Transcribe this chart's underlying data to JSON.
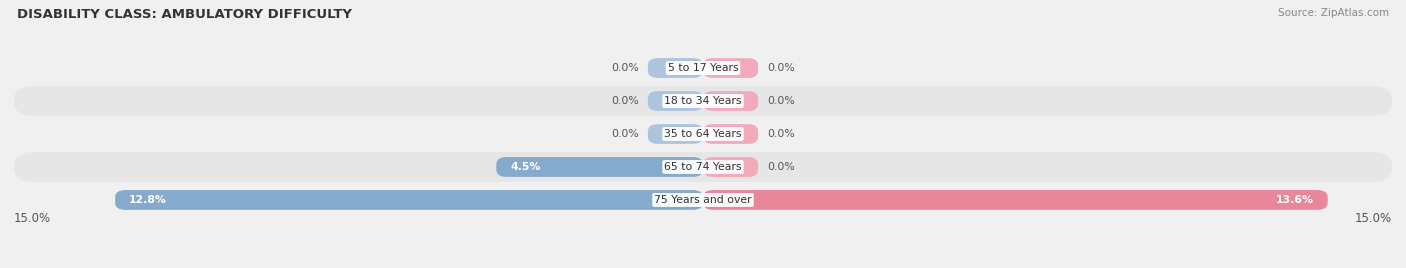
{
  "title": "DISABILITY CLASS: AMBULATORY DIFFICULTY",
  "source": "Source: ZipAtlas.com",
  "categories": [
    "5 to 17 Years",
    "18 to 34 Years",
    "35 to 64 Years",
    "65 to 74 Years",
    "75 Years and over"
  ],
  "male_values": [
    0.0,
    0.0,
    0.0,
    4.5,
    12.8
  ],
  "female_values": [
    0.0,
    0.0,
    0.0,
    0.0,
    13.6
  ],
  "max_val": 15.0,
  "male_color": "#85aacc",
  "female_color": "#e8879a",
  "male_stub_color": "#adc4de",
  "female_stub_color": "#f0aabb",
  "row_bg_light": "#f0f0f0",
  "row_bg_dark": "#e6e6e6",
  "fig_bg": "#f0f0f0",
  "label_color": "#555555",
  "title_color": "#333333",
  "source_color": "#888888",
  "bottom_label_color": "#555555",
  "legend_male_color": "#85aacc",
  "legend_female_color": "#e8879a",
  "stub_size": 1.2
}
